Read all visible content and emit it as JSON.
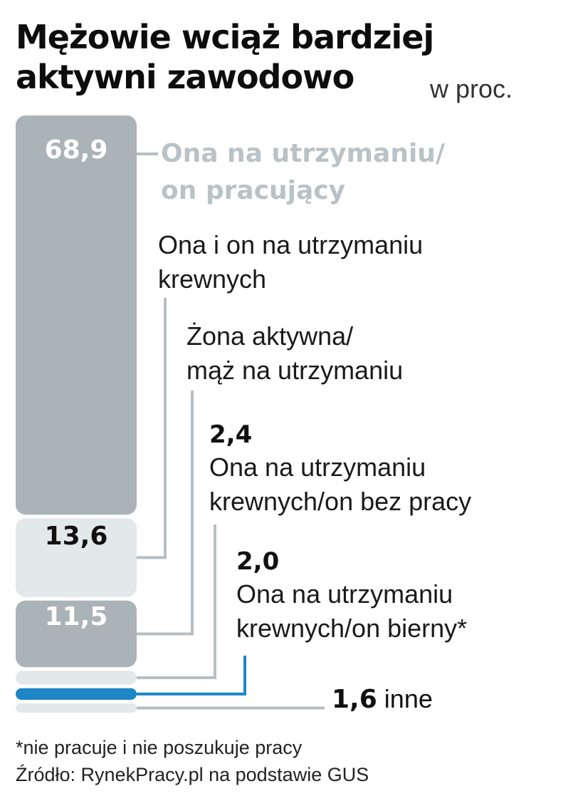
{
  "title_line1": "Mężowie wciąż bardziej",
  "title_line2": "aktywni zawodowo",
  "unit": "w proc.",
  "chart_data": {
    "type": "bar",
    "title": "Mężowie wciąż bardziej aktywni zawodowo",
    "subtitle": "w proc.",
    "categories": [
      "Ona na utrzymaniu/ on pracujący",
      "Ona i on na utrzymaniu krewnych",
      "Żona aktywna/ mąż na utrzymaniu",
      "Ona na utrzymaniu krewnych/on bez pracy",
      "Ona na utrzymaniu krewnych/on bierny*",
      "inne"
    ],
    "values": [
      68.9,
      13.6,
      11.5,
      2.4,
      2.0,
      1.6
    ],
    "value_labels": [
      "68,9",
      "13,6",
      "11,5",
      "2,4",
      "2,0",
      "1,6"
    ],
    "colors": [
      "#a9b3b8",
      "#e3e8ea",
      "#a9b3b8",
      "#e3e8ea",
      "#1c86c6",
      "#e3e8ea"
    ]
  },
  "labels": {
    "cat0_line1": "Ona na utrzymaniu/",
    "cat0_line2": "on pracujący",
    "cat1_line1": "Ona i on na utrzymaniu",
    "cat1_line2": "krewnych",
    "cat2_line1": "Żona aktywna/",
    "cat2_line2": "mąż na utrzymaniu",
    "cat3_line1": "Ona na utrzymaniu",
    "cat3_line2": "krewnych/on bez pracy",
    "cat4_line1": "Ona na utrzymaniu",
    "cat4_line2": "krewnych/on bierny*",
    "cat5": "inne"
  },
  "footer": {
    "note": "*nie pracuje i nie poszukuje pracy",
    "source": "Źródło: RynekPracy.pl na podstawie GUS"
  }
}
